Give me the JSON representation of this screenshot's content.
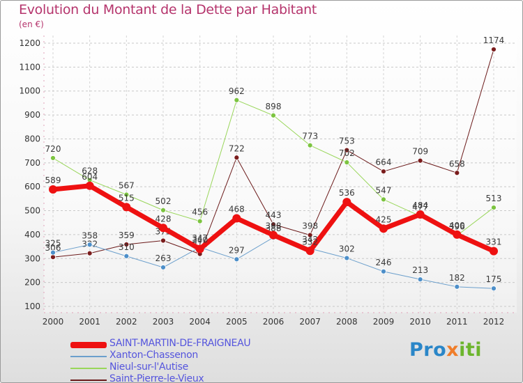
{
  "title": "Evolution du Montant de la Dette par Habitant",
  "unit": "(en €)",
  "logo": {
    "text": "Proxiti",
    "colors": [
      "#2a86c8",
      "#f07d2a",
      "#6cb52d"
    ]
  },
  "chart_data": {
    "type": "line",
    "title": "Evolution du Montant de la Dette par Habitant",
    "ylabel": "(en €)",
    "xlabel": "",
    "x": [
      "2000",
      "2001",
      "2002",
      "2003",
      "2004",
      "2005",
      "2006",
      "2007",
      "2008",
      "2009",
      "2010",
      "2011",
      "2012"
    ],
    "ylim": [
      100,
      1200
    ],
    "yticks": [
      100,
      200,
      300,
      400,
      500,
      600,
      700,
      800,
      900,
      1000,
      1100,
      1200
    ],
    "grid": true,
    "legend_position": "bottom",
    "series": [
      {
        "name": "Saint-Pierre-le-Vieux",
        "color": "#6b1a1a",
        "marker": "#7a1c1c",
        "width": 1,
        "values": [
          306,
          322,
          359,
          375,
          319,
          722,
          443,
          398,
          753,
          664,
          709,
          658,
          1174
        ]
      },
      {
        "name": "Nieul-sur-l'Autise",
        "color": "#99d65a",
        "marker": "#7cc440",
        "width": 1,
        "values": [
          720,
          628,
          567,
          502,
          456,
          962,
          898,
          773,
          702,
          547,
          477,
          396,
          513
        ]
      },
      {
        "name": "Xanton-Chassenon",
        "color": "#6b9fcc",
        "marker": "#4d8fc9",
        "width": 1,
        "values": [
          325,
          358,
          310,
          263,
          347,
          297,
          388,
          342,
          302,
          246,
          213,
          182,
          175
        ]
      },
      {
        "name": "SAINT-MARTIN-DE-FRAIGNEAU",
        "color": "#ee1111",
        "marker": "#ee1111",
        "width": 7,
        "values": [
          589,
          604,
          515,
          428,
          340,
          468,
          398,
          332,
          536,
          425,
          484,
          400,
          331
        ]
      }
    ],
    "legend_order": [
      "SAINT-MARTIN-DE-FRAIGNEAU",
      "Xanton-Chassenon",
      "Nieul-sur-l'Autise",
      "Saint-Pierre-le-Vieux"
    ],
    "legend_colors": {
      "SAINT-MARTIN-DE-FRAIGNEAU": "#5555dd",
      "Xanton-Chassenon": "#5555dd",
      "Nieul-sur-l'Autise": "#5555dd",
      "Saint-Pierre-le-Vieux": "#5555dd"
    }
  }
}
